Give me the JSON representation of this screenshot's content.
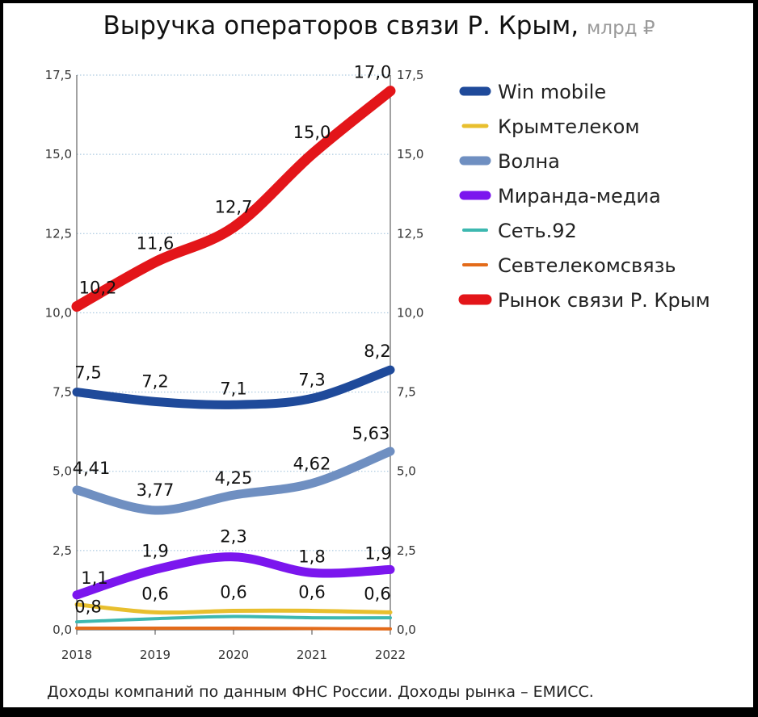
{
  "title": "Выручка операторов связи Р. Крым,",
  "unit": "млрд ₽",
  "footer": "Доходы компаний по данным ФНС России. Доходы рынка – ЕМИСС.",
  "chart_data": {
    "type": "line",
    "x": [
      "2018",
      "2019",
      "2020",
      "2021",
      "2022"
    ],
    "ylim": [
      0,
      17.5
    ],
    "yticks": [
      "0,0",
      "2,5",
      "5,0",
      "7,5",
      "10,0",
      "12,5",
      "15,0",
      "17,5"
    ],
    "grid": true,
    "legend": "right",
    "series": [
      {
        "name": "Win mobile",
        "color": "#1f4a9a",
        "values": [
          7.5,
          7.2,
          7.1,
          7.3,
          8.2
        ],
        "labels": [
          "7,5",
          "7,2",
          "7,1",
          "7,3",
          "8,2"
        ]
      },
      {
        "name": "Крымтелеком",
        "color": "#e8bf2e",
        "values": [
          0.8,
          0.55,
          0.6,
          0.6,
          0.55
        ],
        "labels": [
          "0,8",
          "0,6",
          "0,6",
          "0,6",
          "0,6"
        ]
      },
      {
        "name": "Волна",
        "color": "#6f8fc1",
        "values": [
          4.41,
          3.77,
          4.25,
          4.62,
          5.63
        ],
        "labels": [
          "4,41",
          "3,77",
          "4,25",
          "4,62",
          "5,63"
        ]
      },
      {
        "name": "Миранда-медиа",
        "color": "#7b16ee",
        "values": [
          1.1,
          1.9,
          2.3,
          1.8,
          1.9
        ],
        "labels": [
          "1,1",
          "1,9",
          "2,3",
          "1,8",
          "1,9"
        ]
      },
      {
        "name": "Сеть.92",
        "color": "#3db8b0",
        "values": [
          0.25,
          0.35,
          0.42,
          0.38,
          0.38
        ],
        "labels": []
      },
      {
        "name": "Севтелекомсвязь",
        "color": "#e36b1a",
        "values": [
          0.05,
          0.05,
          0.05,
          0.04,
          0.03
        ],
        "labels": []
      },
      {
        "name": "Рынок связи Р. Крым",
        "color": "#e31519",
        "values": [
          10.2,
          11.6,
          12.7,
          15.0,
          17.0
        ],
        "labels": [
          "10,2",
          "11,6",
          "12,7",
          "15,0",
          "17,0"
        ]
      }
    ]
  }
}
